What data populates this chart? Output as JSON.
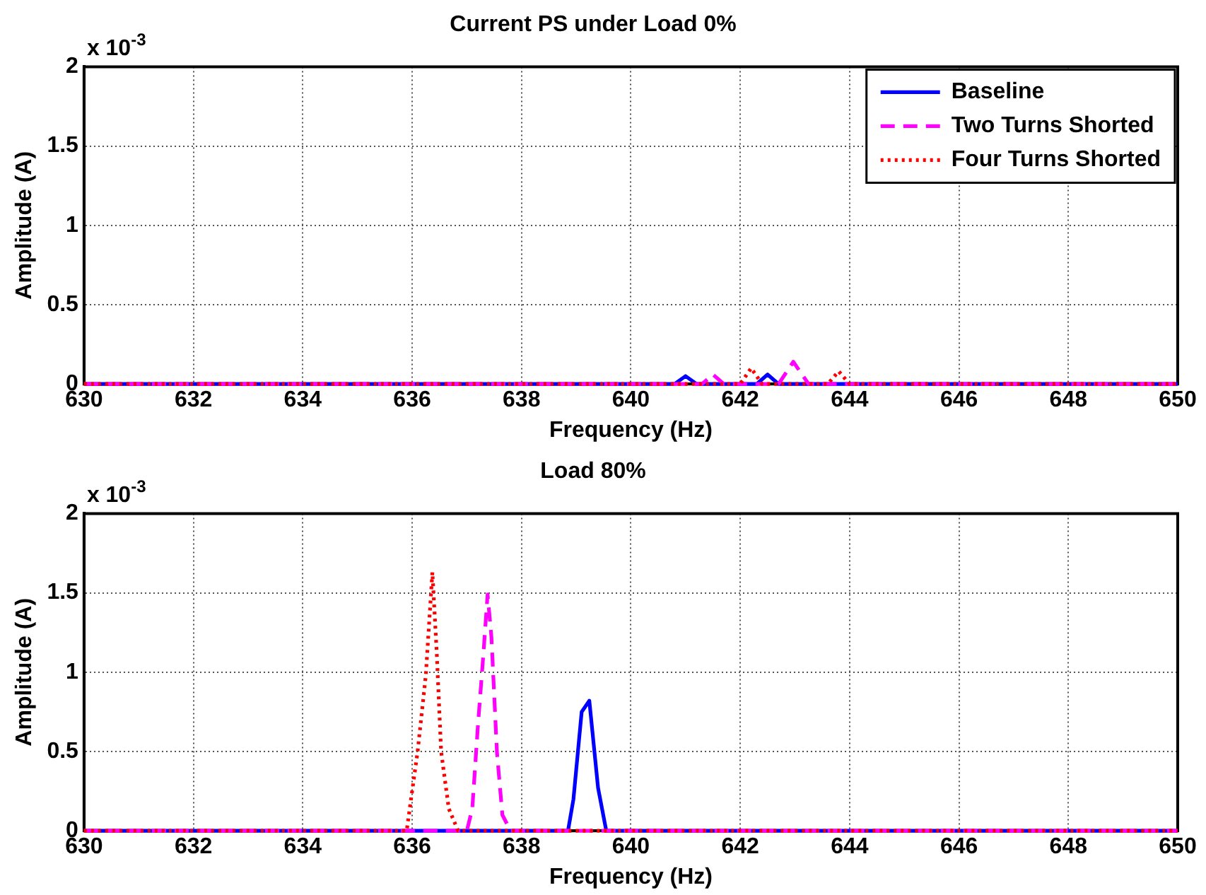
{
  "chart_data": [
    {
      "type": "line",
      "title": "Current PS under Load 0%",
      "xlabel": "Frequency (Hz)",
      "ylabel": "Amplitude (A)",
      "annotations": [
        "x 10$^{-3}$"
      ],
      "series": [
        {
          "name": "Baseline",
          "color": "#0000ff",
          "line_style": "solid",
          "x": [
            630,
            640.8,
            641,
            641.2,
            642.3,
            642.5,
            642.7,
            650
          ],
          "values": [
            0,
            0,
            0.05,
            0,
            0,
            0.06,
            0,
            0
          ]
        },
        {
          "name": "Two Turns Shorted",
          "color": "#ff00ff",
          "line_style": "dashed",
          "x": [
            630,
            641.3,
            641.5,
            641.7,
            642.7,
            642.97,
            643.25,
            650
          ],
          "values": [
            0,
            0,
            0.06,
            0,
            0,
            0.14,
            0,
            0
          ]
        },
        {
          "name": "Four Turns Shorted",
          "color": "#ff0000",
          "line_style": "dotted",
          "x": [
            630,
            642,
            642.2,
            642.4,
            643.6,
            643.8,
            644,
            650
          ],
          "values": [
            0,
            0,
            0.1,
            0,
            0,
            0.08,
            0,
            0
          ]
        }
      ],
      "xlim": [
        630,
        650
      ],
      "xticks": [
        630,
        632,
        634,
        636,
        638,
        640,
        642,
        644,
        646,
        648,
        650
      ],
      "ylim": [
        0,
        2
      ],
      "yticks": [
        0,
        0.5,
        1,
        1.5,
        2
      ],
      "grid": true,
      "legend": "top right",
      "marker": "none"
    },
    {
      "type": "line",
      "title": "Load 80%",
      "xlabel": "Frequency (Hz)",
      "ylabel": "Amplitude (A)",
      "annotations": [
        "x 10$^{-3}$"
      ],
      "series": [
        {
          "color": "#0000ff",
          "line_style": "solid",
          "x": [
            630,
            638.85,
            638.95,
            639.1,
            639.24,
            639.4,
            639.55,
            639.75,
            650
          ],
          "values": [
            0,
            0,
            0.2,
            0.75,
            0.82,
            0.27,
            0,
            0,
            0
          ]
        },
        {
          "color": "#ff00ff",
          "line_style": "dashed",
          "x": [
            630,
            637,
            637.1,
            637.2,
            637.3,
            637.38,
            637.45,
            637.55,
            637.65,
            637.8,
            650
          ],
          "values": [
            0,
            0,
            0.14,
            0.65,
            1.1,
            1.49,
            1.22,
            0.5,
            0.1,
            0,
            0
          ]
        },
        {
          "color": "#ff0000",
          "line_style": "dotted",
          "x": [
            630,
            635.9,
            636.1,
            636.25,
            636.37,
            636.45,
            636.53,
            636.67,
            636.84,
            650
          ],
          "values": [
            0,
            0,
            0.5,
            0.98,
            1.63,
            1.12,
            0.5,
            0.14,
            0,
            0
          ]
        }
      ],
      "xlim": [
        630,
        650
      ],
      "xticks": [
        630,
        632,
        634,
        636,
        638,
        640,
        642,
        644,
        646,
        648,
        650
      ],
      "ylim": [
        0,
        2
      ],
      "yticks": [
        0,
        0.5,
        1,
        1.5,
        2
      ],
      "grid": true,
      "legend": false,
      "marker": "none"
    }
  ]
}
